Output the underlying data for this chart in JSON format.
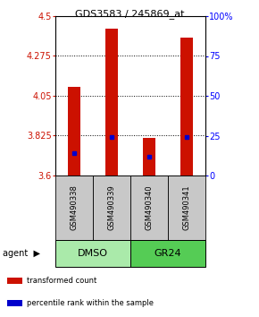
{
  "title": "GDS3583 / 245869_at",
  "samples": [
    "GSM490338",
    "GSM490339",
    "GSM490340",
    "GSM490341"
  ],
  "red_bar_tops": [
    4.1,
    4.43,
    3.81,
    4.38
  ],
  "blue_mark_values": [
    3.725,
    3.815,
    3.705,
    3.815
  ],
  "bar_bottom": 3.6,
  "ylim_left": [
    3.6,
    4.5
  ],
  "ylim_right": [
    0,
    100
  ],
  "yticks_left": [
    3.6,
    3.825,
    4.05,
    4.275,
    4.5
  ],
  "yticks_right": [
    0,
    25,
    50,
    75,
    100
  ],
  "ytick_labels_left": [
    "3.6",
    "3.825",
    "4.05",
    "4.275",
    "4.5"
  ],
  "ytick_labels_right": [
    "0",
    "25",
    "50",
    "75",
    "100%"
  ],
  "groups": [
    {
      "label": "DMSO",
      "color": "#AAEAAA",
      "indices": [
        0,
        1
      ]
    },
    {
      "label": "GR24",
      "color": "#55CC55",
      "indices": [
        2,
        3
      ]
    }
  ],
  "agent_label": "agent",
  "red_color": "#CC1100",
  "blue_color": "#0000CC",
  "bar_width": 0.35,
  "legend_items": [
    "transformed count",
    "percentile rank within the sample"
  ],
  "sample_box_color": "#C8C8C8",
  "background_color": "#FFFFFF"
}
